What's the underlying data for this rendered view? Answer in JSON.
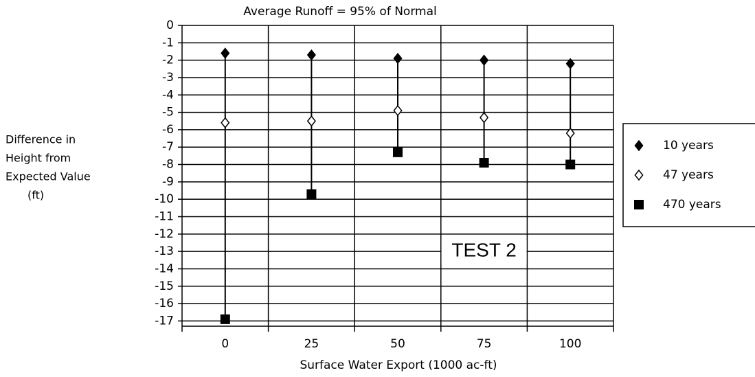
{
  "chart_data": {
    "type": "dot",
    "title": "Average Runoff =  95% of Normal",
    "xlabel": "Surface Water Export (1000 ac-ft)",
    "ylabel_lines": [
      "Difference in",
      "Height from",
      "Expected Value",
      "(ft)"
    ],
    "annotation": "TEST 2",
    "categories": [
      "0",
      "25",
      "50",
      "75",
      "100"
    ],
    "series": [
      {
        "name": "10 years",
        "color": "#000000",
        "marker": "diamond-filled",
        "values": [
          -1.6,
          -1.7,
          -1.9,
          -2.0,
          -2.2
        ]
      },
      {
        "name": "47 years",
        "color": "#000000",
        "marker": "diamond-open",
        "values": [
          -5.6,
          -5.5,
          -4.9,
          -5.3,
          -6.2
        ]
      },
      {
        "name": "470 years",
        "color": "#000000",
        "marker": "square",
        "values": [
          -16.9,
          -9.7,
          -7.3,
          -7.9,
          -8.0
        ]
      }
    ],
    "ylim": [
      -17.3,
      0
    ],
    "yticks": [
      0,
      -1,
      -2,
      -3,
      -4,
      -5,
      -6,
      -7,
      -8,
      -9,
      -10,
      -11,
      -12,
      -13,
      -14,
      -15,
      -16,
      -17
    ],
    "grid": true,
    "legend": "right"
  }
}
